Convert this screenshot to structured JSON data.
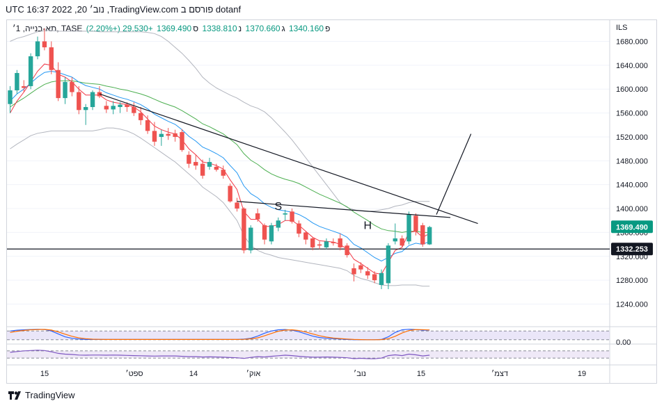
{
  "header": {
    "title": "dotanf פורסם ב TradingView.com, נוב׳ 20, 2022 16:37 UTC"
  },
  "legend": {
    "symbol": "תא-בנייה, 1׳, TASE",
    "open_label": "פ",
    "open": "1340.160",
    "high_label": "ג",
    "high": "1370.660",
    "low_label": "נ",
    "low": "1338.810",
    "close_label": "ס",
    "close": "1369.490",
    "change": "+29.530 (+2.20%)"
  },
  "footer": {
    "brand": "TradingView"
  },
  "colors": {
    "up": "#26a69a",
    "down": "#ef5350",
    "ema_fast": "#f23645",
    "ema_mid": "#2196f3",
    "ema_slow": "#4caf50",
    "bollinger": "#b2b5be",
    "stoch_k": "#2962ff",
    "stoch_d": "#ff6d00",
    "rsi": "#7e57c2",
    "price_label_bg": "#089981"
  },
  "chart_data": [
    {
      "type": "candlestick",
      "currency": "ILS",
      "ylim": [
        1200,
        1720
      ],
      "y_ticks": [
        "1680.000",
        "1640.000",
        "1600.000",
        "1560.000",
        "1520.000",
        "1480.000",
        "1440.000",
        "1400.000",
        "1360.000",
        "1320.000",
        "1280.000",
        "1240.000"
      ],
      "x_ticks": [
        "15",
        "ספט׳",
        "14",
        "אוק׳",
        "נוב׳",
        "15",
        "דצמ׳",
        "19"
      ],
      "last_price_label": "1369.490",
      "hline_label": "1332.253",
      "hline_value": 1332.253,
      "annotations": [
        "S",
        "H"
      ],
      "candles": [
        {
          "o": 1575,
          "h": 1605,
          "l": 1560,
          "c": 1598
        },
        {
          "o": 1598,
          "h": 1632,
          "l": 1592,
          "c": 1627
        },
        {
          "o": 1605,
          "h": 1615,
          "l": 1595,
          "c": 1602
        },
        {
          "o": 1605,
          "h": 1660,
          "l": 1600,
          "c": 1655
        },
        {
          "o": 1655,
          "h": 1688,
          "l": 1650,
          "c": 1680
        },
        {
          "o": 1680,
          "h": 1702,
          "l": 1665,
          "c": 1670
        },
        {
          "o": 1670,
          "h": 1680,
          "l": 1625,
          "c": 1632
        },
        {
          "o": 1632,
          "h": 1645,
          "l": 1580,
          "c": 1585
        },
        {
          "o": 1585,
          "h": 1620,
          "l": 1575,
          "c": 1612
        },
        {
          "o": 1612,
          "h": 1620,
          "l": 1588,
          "c": 1595
        },
        {
          "o": 1595,
          "h": 1605,
          "l": 1558,
          "c": 1565
        },
        {
          "o": 1565,
          "h": 1575,
          "l": 1540,
          "c": 1570
        },
        {
          "o": 1570,
          "h": 1598,
          "l": 1565,
          "c": 1595
        },
        {
          "o": 1595,
          "h": 1605,
          "l": 1585,
          "c": 1588
        },
        {
          "o": 1572,
          "h": 1580,
          "l": 1560,
          "c": 1566
        },
        {
          "o": 1566,
          "h": 1580,
          "l": 1558,
          "c": 1572
        },
        {
          "o": 1570,
          "h": 1578,
          "l": 1560,
          "c": 1574
        },
        {
          "o": 1574,
          "h": 1578,
          "l": 1562,
          "c": 1570
        },
        {
          "o": 1570,
          "h": 1578,
          "l": 1555,
          "c": 1560
        },
        {
          "o": 1560,
          "h": 1570,
          "l": 1540,
          "c": 1548
        },
        {
          "o": 1548,
          "h": 1556,
          "l": 1525,
          "c": 1530
        },
        {
          "o": 1530,
          "h": 1545,
          "l": 1505,
          "c": 1512
        },
        {
          "o": 1520,
          "h": 1532,
          "l": 1505,
          "c": 1525
        },
        {
          "o": 1525,
          "h": 1535,
          "l": 1515,
          "c": 1522
        },
        {
          "o": 1526,
          "h": 1532,
          "l": 1512,
          "c": 1520
        },
        {
          "o": 1528,
          "h": 1533,
          "l": 1495,
          "c": 1498
        },
        {
          "o": 1490,
          "h": 1496,
          "l": 1468,
          "c": 1475
        },
        {
          "o": 1478,
          "h": 1490,
          "l": 1465,
          "c": 1472
        },
        {
          "o": 1475,
          "h": 1482,
          "l": 1450,
          "c": 1455
        },
        {
          "o": 1470,
          "h": 1485,
          "l": 1465,
          "c": 1478
        },
        {
          "o": 1470,
          "h": 1475,
          "l": 1462,
          "c": 1465
        },
        {
          "o": 1465,
          "h": 1472,
          "l": 1450,
          "c": 1455
        },
        {
          "o": 1438,
          "h": 1442,
          "l": 1410,
          "c": 1412
        },
        {
          "o": 1410,
          "h": 1418,
          "l": 1395,
          "c": 1400
        },
        {
          "o": 1400,
          "h": 1402,
          "l": 1325,
          "c": 1330
        },
        {
          "o": 1330,
          "h": 1372,
          "l": 1325,
          "c": 1368
        },
        {
          "o": 1392,
          "h": 1400,
          "l": 1378,
          "c": 1382
        },
        {
          "o": 1372,
          "h": 1375,
          "l": 1340,
          "c": 1348
        },
        {
          "o": 1345,
          "h": 1376,
          "l": 1340,
          "c": 1372
        },
        {
          "o": 1368,
          "h": 1385,
          "l": 1362,
          "c": 1380
        },
        {
          "o": 1390,
          "h": 1398,
          "l": 1380,
          "c": 1392
        },
        {
          "o": 1395,
          "h": 1400,
          "l": 1375,
          "c": 1378
        },
        {
          "o": 1375,
          "h": 1380,
          "l": 1352,
          "c": 1358
        },
        {
          "o": 1360,
          "h": 1362,
          "l": 1340,
          "c": 1348
        },
        {
          "o": 1350,
          "h": 1352,
          "l": 1330,
          "c": 1335
        },
        {
          "o": 1340,
          "h": 1345,
          "l": 1332,
          "c": 1338
        },
        {
          "o": 1335,
          "h": 1350,
          "l": 1332,
          "c": 1345
        },
        {
          "o": 1344,
          "h": 1350,
          "l": 1338,
          "c": 1342
        },
        {
          "o": 1350,
          "h": 1358,
          "l": 1330,
          "c": 1335
        },
        {
          "o": 1338,
          "h": 1342,
          "l": 1318,
          "c": 1322
        },
        {
          "o": 1300,
          "h": 1308,
          "l": 1278,
          "c": 1290
        },
        {
          "o": 1305,
          "h": 1310,
          "l": 1292,
          "c": 1298
        },
        {
          "o": 1295,
          "h": 1302,
          "l": 1282,
          "c": 1288
        },
        {
          "o": 1290,
          "h": 1295,
          "l": 1275,
          "c": 1280
        },
        {
          "o": 1272,
          "h": 1298,
          "l": 1265,
          "c": 1292
        },
        {
          "o": 1275,
          "h": 1342,
          "l": 1265,
          "c": 1338
        },
        {
          "o": 1345,
          "h": 1375,
          "l": 1340,
          "c": 1350
        },
        {
          "o": 1350,
          "h": 1355,
          "l": 1335,
          "c": 1338
        },
        {
          "o": 1345,
          "h": 1395,
          "l": 1340,
          "c": 1390
        },
        {
          "o": 1388,
          "h": 1392,
          "l": 1355,
          "c": 1362
        },
        {
          "o": 1372,
          "h": 1376,
          "l": 1336,
          "c": 1340
        },
        {
          "o": 1340,
          "h": 1371,
          "l": 1339,
          "c": 1369
        }
      ],
      "ema_fast": [
        1560,
        1580,
        1595,
        1612,
        1630,
        1642,
        1640,
        1625,
        1620,
        1612,
        1600,
        1590,
        1590,
        1590,
        1582,
        1578,
        1576,
        1574,
        1570,
        1562,
        1550,
        1538,
        1532,
        1528,
        1525,
        1515,
        1500,
        1490,
        1478,
        1476,
        1472,
        1466,
        1448,
        1432,
        1395,
        1382,
        1382,
        1370,
        1370,
        1373,
        1380,
        1380,
        1372,
        1362,
        1352,
        1346,
        1345,
        1344,
        1340,
        1332,
        1315,
        1308,
        1300,
        1292,
        1290,
        1310,
        1330,
        1335,
        1360,
        1362,
        1352,
        1358
      ],
      "ema_mid": [
        1580,
        1592,
        1600,
        1610,
        1620,
        1628,
        1630,
        1628,
        1624,
        1620,
        1612,
        1606,
        1603,
        1600,
        1594,
        1590,
        1586,
        1583,
        1579,
        1574,
        1567,
        1558,
        1552,
        1546,
        1541,
        1532,
        1521,
        1513,
        1503,
        1498,
        1492,
        1485,
        1472,
        1460,
        1438,
        1425,
        1418,
        1408,
        1402,
        1398,
        1396,
        1394,
        1390,
        1384,
        1376,
        1370,
        1366,
        1362,
        1358,
        1352,
        1340,
        1334,
        1326,
        1318,
        1312,
        1318,
        1325,
        1328,
        1338,
        1342,
        1340,
        1345
      ],
      "ema_slow": [
        1570,
        1578,
        1585,
        1593,
        1601,
        1608,
        1612,
        1614,
        1614,
        1614,
        1612,
        1610,
        1609,
        1608,
        1605,
        1603,
        1600,
        1598,
        1595,
        1592,
        1588,
        1583,
        1578,
        1574,
        1570,
        1564,
        1557,
        1550,
        1542,
        1537,
        1531,
        1525,
        1516,
        1507,
        1492,
        1481,
        1474,
        1465,
        1458,
        1453,
        1449,
        1446,
        1442,
        1436,
        1430,
        1424,
        1419,
        1414,
        1409,
        1403,
        1394,
        1387,
        1380,
        1372,
        1366,
        1363,
        1362,
        1360,
        1362,
        1362,
        1360,
        1360
      ],
      "bb_upper": [
        1680,
        1685,
        1688,
        1692,
        1696,
        1698,
        1698,
        1697,
        1697,
        1697,
        1697,
        1697,
        1697,
        1696,
        1696,
        1696,
        1696,
        1696,
        1696,
        1696,
        1695,
        1693,
        1688,
        1680,
        1670,
        1660,
        1648,
        1635,
        1620,
        1610,
        1602,
        1596,
        1590,
        1585,
        1578,
        1572,
        1568,
        1562,
        1552,
        1540,
        1528,
        1515,
        1500,
        1485,
        1470,
        1455,
        1440,
        1425,
        1410,
        1402,
        1398,
        1396,
        1395,
        1396,
        1398,
        1400,
        1404,
        1406,
        1410,
        1412,
        1412,
        1412
      ],
      "bb_lower": [
        1500,
        1508,
        1515,
        1522,
        1526,
        1528,
        1530,
        1530,
        1530,
        1530,
        1530,
        1530,
        1530,
        1532,
        1535,
        1535,
        1533,
        1530,
        1525,
        1518,
        1510,
        1502,
        1494,
        1486,
        1478,
        1468,
        1458,
        1448,
        1436,
        1428,
        1420,
        1410,
        1395,
        1380,
        1355,
        1338,
        1330,
        1325,
        1322,
        1318,
        1316,
        1314,
        1312,
        1310,
        1308,
        1306,
        1304,
        1302,
        1300,
        1296,
        1288,
        1283,
        1280,
        1276,
        1272,
        1271,
        1271,
        1272,
        1272,
        1272,
        1270,
        1270
      ],
      "trendlines": [
        {
          "from": [
            13,
            1592
          ],
          "to": [
            66,
            1375
          ]
        },
        {
          "from": [
            33,
            1412
          ],
          "to": [
            62,
            1385
          ]
        },
        {
          "from": [
            62,
            1390
          ],
          "to": [
            65,
            1525
          ]
        }
      ]
    },
    {
      "type": "line",
      "name": "stochastic",
      "ylim": [
        0,
        100
      ],
      "levels": [
        80,
        20
      ],
      "tick_label": "0.00",
      "series": [
        {
          "name": "",
          "values": [
            80,
            85,
            88,
            90,
            92,
            90,
            80,
            60,
            40,
            30,
            25,
            22,
            22,
            22,
            22,
            22,
            22,
            22,
            22,
            22,
            22,
            22,
            22,
            22,
            22,
            22,
            22,
            22,
            22,
            22,
            22,
            22,
            22,
            22,
            25,
            30,
            45,
            65,
            80,
            88,
            90,
            85,
            75,
            60,
            45,
            35,
            30,
            28,
            25,
            22,
            20,
            20,
            20,
            20,
            22,
            40,
            70,
            88,
            92,
            90,
            85,
            86
          ]
        },
        {
          "name": "",
          "values": [
            70,
            78,
            84,
            88,
            90,
            91,
            86,
            74,
            58,
            44,
            33,
            27,
            24,
            23,
            22,
            22,
            22,
            22,
            22,
            22,
            22,
            22,
            22,
            22,
            22,
            22,
            22,
            22,
            22,
            22,
            22,
            22,
            22,
            22,
            23,
            26,
            33,
            47,
            63,
            78,
            86,
            88,
            83,
            73,
            60,
            47,
            38,
            32,
            28,
            25,
            22,
            21,
            20,
            20,
            21,
            27,
            44,
            66,
            83,
            90,
            89,
            87
          ]
        }
      ]
    },
    {
      "type": "line",
      "name": "rsi",
      "ylim": [
        0,
        100
      ],
      "levels": [
        70,
        30
      ],
      "series": [
        {
          "name": "",
          "values": [
            62,
            66,
            70,
            72,
            74,
            72,
            65,
            56,
            52,
            50,
            47,
            46,
            47,
            47,
            46,
            47,
            46,
            45,
            44,
            43,
            42,
            41,
            42,
            42,
            42,
            40,
            38,
            38,
            36,
            37,
            36,
            35,
            33,
            32,
            28,
            34,
            38,
            36,
            40,
            43,
            46,
            44,
            40,
            37,
            35,
            35,
            36,
            35,
            34,
            32,
            27,
            29,
            27,
            26,
            30,
            44,
            48,
            44,
            52,
            48,
            42,
            46
          ]
        }
      ]
    }
  ]
}
